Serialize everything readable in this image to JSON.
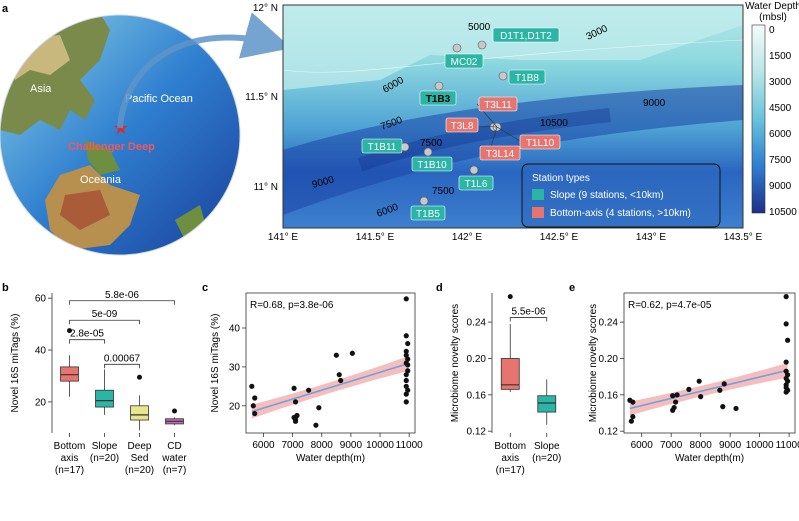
{
  "panel_labels": {
    "a": "a",
    "b": "b",
    "c": "c",
    "d": "d",
    "e": "e"
  },
  "globe": {
    "asia": "Asia",
    "pacific": "Pacific Ocean",
    "challenger": "Challenger Deep",
    "oceania": "Oceania"
  },
  "map": {
    "lat_ticks": [
      "12° N",
      "11.5° N",
      "11° N"
    ],
    "lon_ticks": [
      "141° E",
      "141.5° E",
      "142° E",
      "142.5° E",
      "143° E",
      "143.5° E"
    ],
    "depth_contours": [
      "5000",
      "3000",
      "6000",
      "9000",
      "7500",
      "10500",
      "7500",
      "9000",
      "7500",
      "6000"
    ],
    "stations_slope": [
      "D1T1,D1T2",
      "MC02",
      "T1B8",
      "T1B3",
      "T1B11",
      "T1B10",
      "T1L6",
      "T1B5"
    ],
    "stations_axis": [
      "T3L11",
      "T3L8",
      "T1L10",
      "T3L14"
    ],
    "legend": {
      "title": "Station types",
      "slope": "Slope (9 stations, <10km)",
      "axis": "Bottom-axis (4 stations, >10km)"
    },
    "colorbar": {
      "title_line1": "Water Depth",
      "title_line2": "(mbsl)",
      "ticks": [
        "0",
        "1500",
        "3000",
        "4500",
        "6000",
        "7500",
        "9000",
        "10500"
      ]
    },
    "colors": {
      "slope": "#2bb5a5",
      "axis": "#e8746f"
    }
  },
  "chart_data": [
    {
      "panel": "b",
      "type": "box",
      "ylabel": "Novel 16S miTags (%)",
      "ylim": [
        8,
        62
      ],
      "yticks": [
        "20",
        "40",
        "60"
      ],
      "categories": [
        {
          "line1": "Bottom",
          "line2": "axis",
          "line3": "(n=17)"
        },
        {
          "line1": "Slope",
          "line2": "(n=20)",
          "line3": ""
        },
        {
          "line1": "Deep",
          "line2": "Sed",
          "line3": "(n=20)"
        },
        {
          "line1": "CD",
          "line2": "water",
          "line3": "(n=7)"
        }
      ],
      "boxes": [
        {
          "min": 22,
          "q1": 28,
          "median": 30.5,
          "q3": 33.5,
          "max": 38,
          "outliers": [
            47.5
          ],
          "color": "#e8746f"
        },
        {
          "min": 15,
          "q1": 18,
          "median": 20.5,
          "q3": 24.5,
          "max": 32.5,
          "outliers": [],
          "color": "#2bb5a5"
        },
        {
          "min": 9,
          "q1": 13,
          "median": 15,
          "q3": 18.5,
          "max": 22.5,
          "outliers": [
            29.5
          ],
          "color": "#e8e68a"
        },
        {
          "min": 11,
          "q1": 11.5,
          "median": 12.5,
          "q3": 13.5,
          "max": 14,
          "outliers": [
            16.5
          ],
          "color": "#c46bb5"
        }
      ],
      "brackets": [
        {
          "from": 0,
          "to": 3,
          "label": "5.8e-06",
          "y": 59
        },
        {
          "from": 0,
          "to": 2,
          "label": "5e-09",
          "y": 51.5
        },
        {
          "from": 0,
          "to": 1,
          "label": "2.8e-05",
          "y": 44
        },
        {
          "from": 1,
          "to": 2,
          "label": "0.00067",
          "y": 34.5
        }
      ]
    },
    {
      "panel": "c",
      "type": "scatter",
      "annotation": "R=0.68, p=3.8e-06",
      "xlabel": "Water depth(m)",
      "ylabel": "Novel 16S miTags (%)",
      "xlim": [
        5400,
        11200
      ],
      "ylim": [
        13,
        49
      ],
      "xticks": [
        "6000",
        "7000",
        "8000",
        "9000",
        "10000",
        "11000"
      ],
      "yticks": [
        "20",
        "30",
        "40"
      ],
      "points": [
        [
          5600,
          25
        ],
        [
          5700,
          22
        ],
        [
          5700,
          18
        ],
        [
          5650,
          20
        ],
        [
          7050,
          24.5
        ],
        [
          7100,
          21
        ],
        [
          7050,
          17
        ],
        [
          7150,
          17.5
        ],
        [
          7100,
          16.5
        ],
        [
          7100,
          16
        ],
        [
          7550,
          24
        ],
        [
          7800,
          15
        ],
        [
          7900,
          19.5
        ],
        [
          8500,
          33
        ],
        [
          8600,
          28
        ],
        [
          8650,
          26.5
        ],
        [
          9050,
          33.5
        ],
        [
          10900,
          47.5
        ],
        [
          10900,
          38
        ],
        [
          10950,
          36
        ],
        [
          10900,
          34
        ],
        [
          10900,
          33
        ],
        [
          10950,
          32
        ],
        [
          10900,
          31
        ],
        [
          10950,
          30.5
        ],
        [
          10950,
          29
        ],
        [
          10900,
          28
        ],
        [
          10900,
          26.5
        ],
        [
          10900,
          25
        ],
        [
          10950,
          24
        ],
        [
          10900,
          23
        ],
        [
          10900,
          21
        ]
      ],
      "fit": {
        "x0": 5600,
        "y0": 18.5,
        "x1": 10950,
        "y1": 30.8
      }
    },
    {
      "panel": "d",
      "type": "box",
      "ylabel": "Microbiome novelty scores",
      "ylim": [
        0.118,
        0.272
      ],
      "yticks": [
        "0.12",
        "0.16",
        "0.20",
        "0.24"
      ],
      "categories": [
        {
          "line1": "Bottom",
          "line2": "axis",
          "line3": "(n=17)"
        },
        {
          "line1": "Slope",
          "line2": "(n=20)",
          "line3": ""
        }
      ],
      "boxes": [
        {
          "min": 0.163,
          "q1": 0.166,
          "median": 0.171,
          "q3": 0.2,
          "max": 0.238,
          "outliers": [
            0.268
          ],
          "color": "#e8746f"
        },
        {
          "min": 0.127,
          "q1": 0.141,
          "median": 0.151,
          "q3": 0.159,
          "max": 0.177,
          "outliers": [],
          "color": "#2bb5a5"
        }
      ],
      "brackets": [
        {
          "from": 0,
          "to": 1,
          "label": "5.5e-06",
          "y": 0.245
        }
      ]
    },
    {
      "panel": "e",
      "type": "scatter",
      "annotation": "R=0.62, p=4.7e-05",
      "xlabel": "Water depth(m)",
      "ylabel": "Microbiome novelty scores",
      "xlim": [
        5400,
        11200
      ],
      "ylim": [
        0.118,
        0.272
      ],
      "xticks": [
        "6000",
        "7000",
        "8000",
        "9000",
        "10000",
        "11000"
      ],
      "yticks": [
        "0.12",
        "0.16",
        "0.20",
        "0.24"
      ],
      "points": [
        [
          5600,
          0.154
        ],
        [
          5700,
          0.152
        ],
        [
          5700,
          0.136
        ],
        [
          5650,
          0.131
        ],
        [
          7050,
          0.159
        ],
        [
          7100,
          0.146
        ],
        [
          7050,
          0.143
        ],
        [
          7150,
          0.152
        ],
        [
          7200,
          0.16
        ],
        [
          7600,
          0.166
        ],
        [
          7950,
          0.175
        ],
        [
          8000,
          0.158
        ],
        [
          8650,
          0.165
        ],
        [
          8750,
          0.147
        ],
        [
          8800,
          0.172
        ],
        [
          9200,
          0.145
        ],
        [
          10900,
          0.268
        ],
        [
          10900,
          0.238
        ],
        [
          10950,
          0.22
        ],
        [
          10900,
          0.196
        ],
        [
          10900,
          0.186
        ],
        [
          10950,
          0.182
        ],
        [
          10900,
          0.178
        ],
        [
          10950,
          0.175
        ],
        [
          10900,
          0.171
        ],
        [
          10900,
          0.168
        ],
        [
          10950,
          0.165
        ],
        [
          10900,
          0.163
        ]
      ],
      "fit": {
        "x0": 5600,
        "y0": 0.145,
        "x1": 10950,
        "y1": 0.187
      }
    }
  ]
}
